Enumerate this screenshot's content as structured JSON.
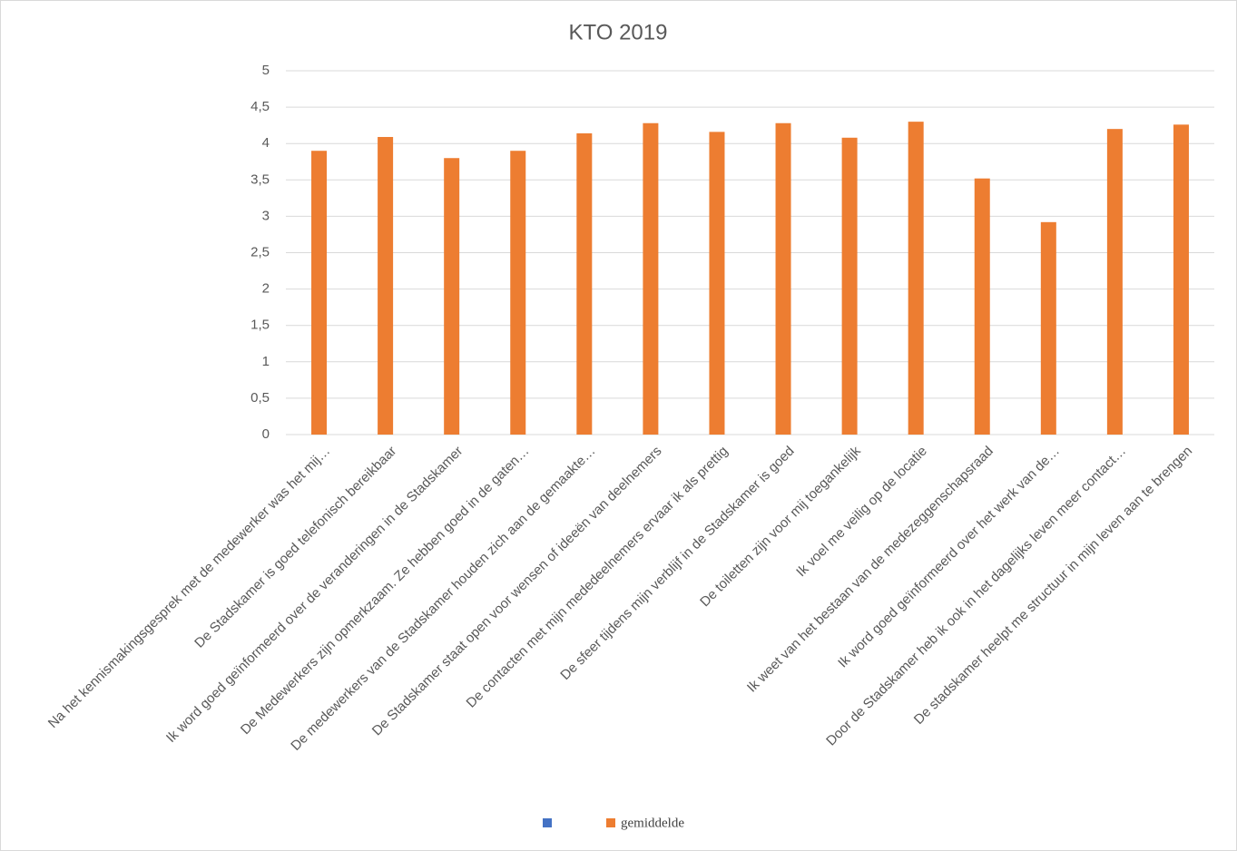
{
  "chart_data": {
    "type": "bar",
    "title": "KTO 2019",
    "categories": [
      "Na het kennismakingsgesprek met de medewerker was het mij…",
      "De Stadskamer is goed telefonisch bereikbaar",
      "Ik word goed geïnformeerd over de veranderingen in de Stadskamer",
      "De Medewerkers zijn opmerkzaam. Ze hebben goed in de gaten…",
      "De medewerkers van de Stadskamer houden zich aan de gemaakte…",
      "De Stadskamer staat open voor wensen of ideeën van deelnemers",
      "De contacten met mijn mededeelnemers ervaar ik als prettig",
      "De sfeer tijdens mijn verblijf in de Stadskamer is goed",
      "De toiletten zijn voor mij toegankelijk",
      "Ik voel me veilig op de locatie",
      "Ik weet van het bestaan van de medezeggenschapsraad",
      "Ik word goed geïnformeerd over het werk van de…",
      "Door de Stadskamer heb ik ook in het dagelijks leven meer contact…",
      "De stadskamer heelpt me structuur in mijn leven aan te brengen"
    ],
    "series": [
      {
        "color": "#4472c4",
        "values": [
          null,
          null,
          null,
          null,
          null,
          null,
          null,
          null,
          null,
          null,
          null,
          null,
          null,
          null
        ]
      },
      {
        "name": "gemiddelde",
        "color": "#ed7d31",
        "values": [
          3.9,
          4.09,
          3.8,
          3.9,
          4.14,
          4.28,
          4.16,
          4.28,
          4.08,
          4.3,
          3.52,
          2.92,
          4.2,
          4.26
        ]
      }
    ],
    "ylim": [
      0,
      5
    ],
    "yticks": [
      0,
      {
        "value": 0.5,
        "label": "0,5"
      },
      1,
      {
        "value": 1.5,
        "label": "1,5"
      },
      2,
      {
        "value": 2.5,
        "label": "2,5"
      },
      3,
      {
        "value": 3.5,
        "label": "3,5"
      },
      4,
      {
        "value": 4.5,
        "label": "4,5"
      },
      5
    ],
    "grid": true,
    "legend": "bottom"
  }
}
